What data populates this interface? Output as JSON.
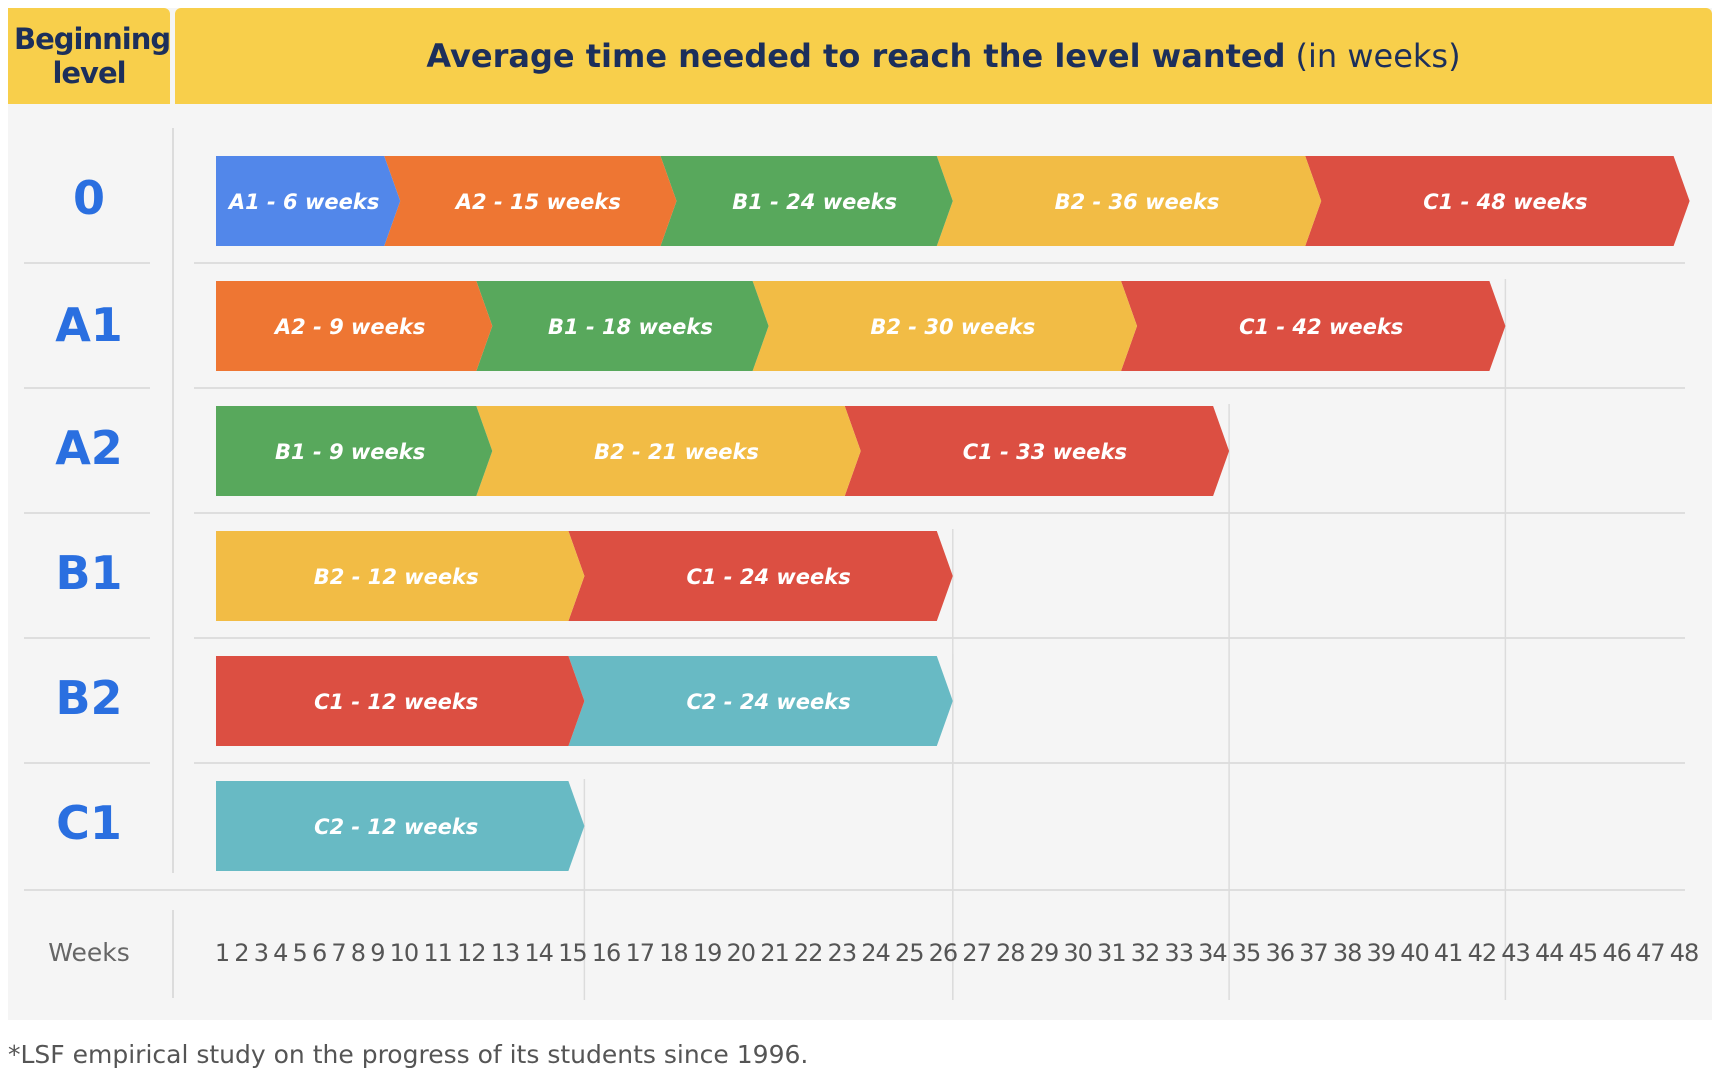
{
  "header": {
    "left_title": "Beginning level",
    "title_bold": "Average time needed to reach the level wanted",
    "title_suffix": "(in weeks)"
  },
  "footnote": "*LSF empirical study on the progress of its students since 1996.",
  "colors": {
    "header_bg": "#f8cf4b",
    "header_text": "#1c2f5b",
    "row_label": "#2a6fe0",
    "A1": "#5287ea",
    "A2": "#ee7633",
    "B1": "#58a85c",
    "B2": "#f2bc45",
    "C1": "#dc4f42",
    "C2": "#68bac4"
  },
  "chart_data": {
    "type": "bar",
    "orientation": "horizontal-stacked-arrows",
    "xlabel": "Weeks",
    "xlim": [
      0,
      48
    ],
    "x_ticks": [
      1,
      2,
      3,
      4,
      5,
      6,
      7,
      8,
      9,
      10,
      11,
      12,
      13,
      14,
      15,
      16,
      17,
      18,
      19,
      20,
      21,
      22,
      23,
      24,
      25,
      26,
      27,
      28,
      29,
      30,
      31,
      32,
      33,
      34,
      35,
      36,
      37,
      38,
      39,
      40,
      41,
      42,
      43,
      44,
      45,
      46,
      47,
      48
    ],
    "rows": [
      {
        "label": "0",
        "segments": [
          {
            "level": "A1",
            "label": "A1 - 6 weeks",
            "end": 6
          },
          {
            "level": "A2",
            "label": "A2 - 15 weeks",
            "end": 15
          },
          {
            "level": "B1",
            "label": "B1 - 24 weeks",
            "end": 24
          },
          {
            "level": "B2",
            "label": "B2 - 36 weeks",
            "end": 36
          },
          {
            "level": "C1",
            "label": "C1 - 48 weeks",
            "end": 48
          }
        ]
      },
      {
        "label": "A1",
        "segments": [
          {
            "level": "A2",
            "label": "A2 - 9 weeks",
            "end": 9
          },
          {
            "level": "B1",
            "label": "B1 - 18 weeks",
            "end": 18
          },
          {
            "level": "B2",
            "label": "B2 - 30 weeks",
            "end": 30
          },
          {
            "level": "C1",
            "label": "C1 - 42 weeks",
            "end": 42
          }
        ]
      },
      {
        "label": "A2",
        "segments": [
          {
            "level": "B1",
            "label": "B1 - 9 weeks",
            "end": 9
          },
          {
            "level": "B2",
            "label": "B2 - 21 weeks",
            "end": 21
          },
          {
            "level": "C1",
            "label": "C1 - 33 weeks",
            "end": 33
          }
        ]
      },
      {
        "label": "B1",
        "segments": [
          {
            "level": "B2",
            "label": "B2 - 12 weeks",
            "end": 12
          },
          {
            "level": "C1",
            "label": "C1 - 24 weeks",
            "end": 24
          }
        ]
      },
      {
        "label": "B2",
        "segments": [
          {
            "level": "C1",
            "label": "C1 - 12 weeks",
            "end": 12
          },
          {
            "level": "C2",
            "label": "C2 - 24 weeks",
            "end": 24
          }
        ]
      },
      {
        "label": "C1",
        "segments": [
          {
            "level": "C2",
            "label": "C2 - 12 weeks",
            "end": 12
          }
        ]
      }
    ]
  }
}
